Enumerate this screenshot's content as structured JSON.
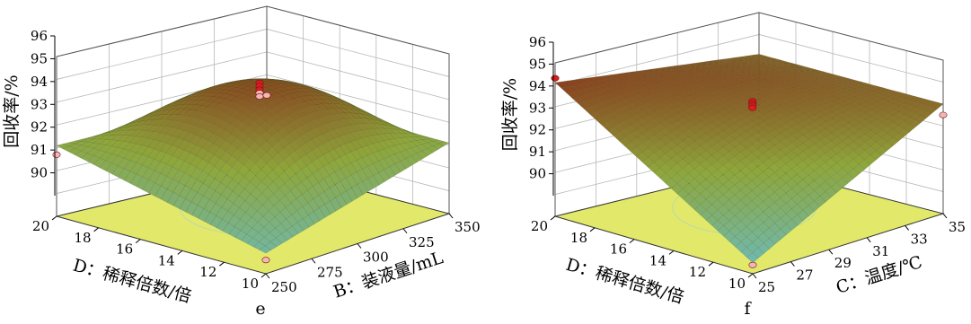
{
  "colors": {
    "floor": "#e2e86a",
    "surface_low": "#6fb9b0",
    "surface_mid": "#8fa63a",
    "surface_high": "#8a3a1c",
    "mesh": "#2e4a18",
    "design_point_above": "#d81e1e",
    "design_point_below": "#f2b6b6",
    "contour": "#a8d6c8"
  },
  "chart_data": [
    {
      "type": "surface",
      "panel_label": "e",
      "zlabel": "回收率/%",
      "zlim": [
        89,
        96
      ],
      "z_ticks": [
        "96",
        "95",
        "94",
        "93",
        "92",
        "91",
        "90"
      ],
      "x": {
        "label": "B：装液量/mL",
        "range": [
          250,
          350
        ],
        "ticks": [
          "250",
          "275",
          "300",
          "325",
          "350"
        ]
      },
      "y": {
        "label": "D：稀释倍数/倍",
        "range": [
          10,
          20
        ],
        "ticks": [
          "10",
          "12",
          "14",
          "16",
          "18",
          "20"
        ]
      },
      "grid": true,
      "corner_values": {
        "b_low_d_low": 89.9,
        "b_high_d_low": 92.1,
        "b_low_d_high": 92.1,
        "b_high_d_high": 92.2
      },
      "center_value": 94.6,
      "design_points": [
        {
          "b": 300,
          "d": 15,
          "z": 94.9
        },
        {
          "b": 300,
          "d": 15,
          "z": 94.75
        },
        {
          "b": 300,
          "d": 15,
          "z": 94.6
        },
        {
          "b": 300,
          "d": 15,
          "z": 94.45
        },
        {
          "b": 300,
          "d": 15,
          "z": 94.3
        },
        {
          "b": 350,
          "d": 20,
          "z": 92.1
        },
        {
          "b": 250,
          "d": 20,
          "z": 91.7
        },
        {
          "b": 250,
          "d": 10,
          "z": 89.6
        }
      ]
    },
    {
      "type": "surface",
      "panel_label": "f",
      "zlabel": "回收率/%",
      "zlim": [
        89,
        96
      ],
      "z_ticks": [
        "96",
        "95",
        "94",
        "93",
        "92",
        "91",
        "90"
      ],
      "x": {
        "label": "C：温度/℃",
        "range": [
          25,
          35
        ],
        "ticks": [
          "25",
          "27",
          "29",
          "31",
          "33",
          "35"
        ]
      },
      "y": {
        "label": "D：稀释倍数/倍",
        "range": [
          10,
          20
        ],
        "ticks": [
          "10",
          "12",
          "14",
          "16",
          "18",
          "20"
        ]
      },
      "grid": true,
      "corner_values": {
        "c_low_d_low": 89.5,
        "c_high_d_low": 94.0,
        "c_low_d_high": 95.1,
        "c_high_d_high": 94.1
      },
      "center_value": 94.0,
      "design_points": [
        {
          "c": 30,
          "d": 15,
          "z": 94.3
        },
        {
          "c": 30,
          "d": 15,
          "z": 94.2
        },
        {
          "c": 30,
          "d": 15,
          "z": 94.1
        },
        {
          "c": 30,
          "d": 15,
          "z": 94.0
        },
        {
          "c": 25,
          "d": 20,
          "z": 95.3
        },
        {
          "c": 35,
          "d": 10,
          "z": 93.5
        },
        {
          "c": 25,
          "d": 10,
          "z": 89.4
        }
      ]
    }
  ]
}
